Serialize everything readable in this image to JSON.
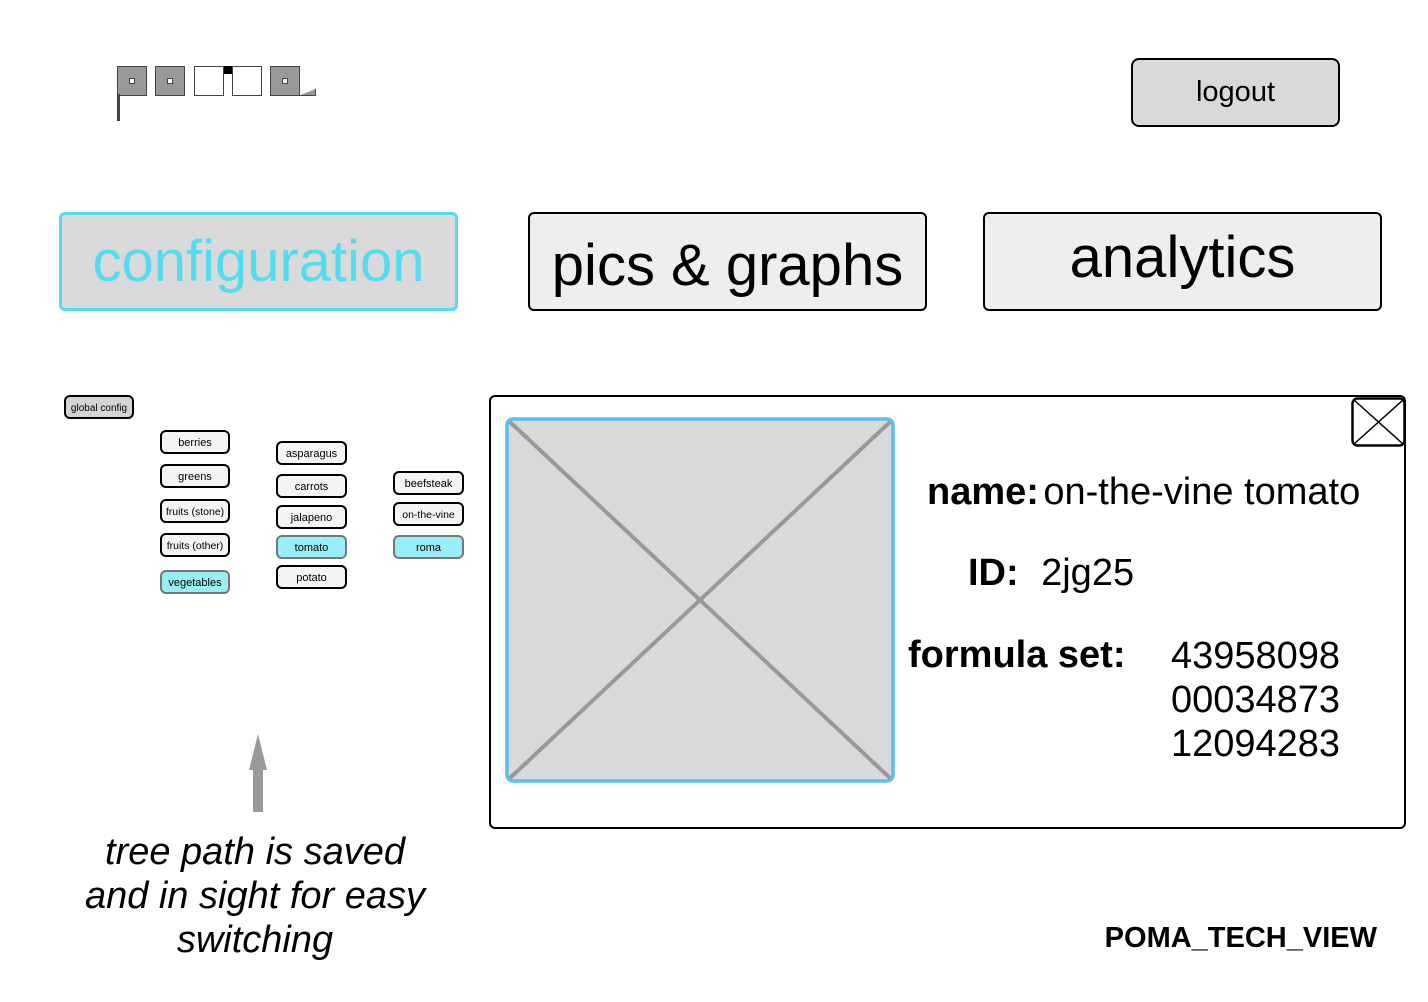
{
  "header": {
    "logo_icon": "poma-logo-icon",
    "logout_label": "logout"
  },
  "tabs": [
    {
      "label": "configuration",
      "active": true
    },
    {
      "label": "pics & graphs",
      "active": false
    },
    {
      "label": "analytics",
      "active": false
    }
  ],
  "tree": {
    "root": "global config",
    "level1": [
      "berries",
      "greens",
      "fruits (stone)",
      "fruits (other)",
      "vegetables"
    ],
    "level2": [
      "asparagus",
      "carrots",
      "jalapeno",
      "tomato",
      "potato"
    ],
    "level3": [
      "beefsteak",
      "on-the-vine",
      "roma"
    ],
    "selected": [
      "vegetables",
      "tomato",
      "roma"
    ]
  },
  "detail": {
    "image_icon": "image-placeholder-icon",
    "close_icon": "close-icon",
    "name_label": "name:",
    "name_value": "on-the-vine tomato",
    "id_label": "ID:",
    "id_value": "2jg25",
    "formula_label": "formula set:",
    "formula_values": [
      "43958098",
      "00034873",
      "12094283"
    ]
  },
  "annotation": {
    "arrow_icon": "up-arrow-icon",
    "lines": [
      "tree path is saved",
      "and in sight for easy",
      "switching"
    ]
  },
  "footer": {
    "tag": "POMA_TECH_VIEW"
  },
  "colors": {
    "accent": "#55dbee",
    "selected_chip": "#97eef6",
    "image_border": "#5bbcf0"
  }
}
